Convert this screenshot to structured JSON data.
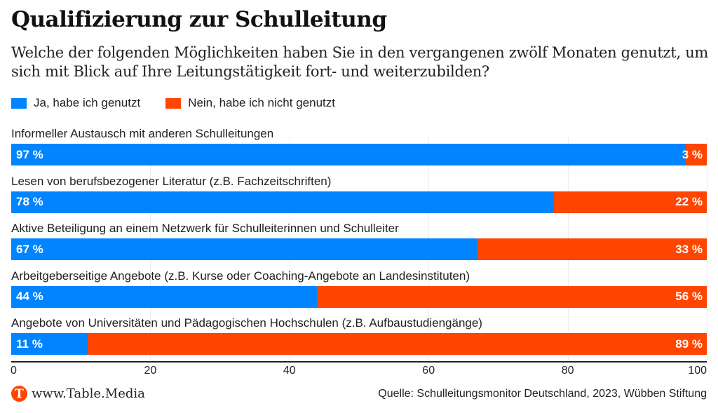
{
  "header": {
    "title": "Qualifizierung zur Schulleitung",
    "subtitle": "Welche der folgenden Möglichkeiten haben Sie in den vergangenen zwölf Monaten genutzt, um sich mit Blick auf Ihre Leitungstätigkeit fort- und weiterzubilden?"
  },
  "colors": {
    "yes": "#0084ff",
    "no": "#ff4500"
  },
  "chart_data": {
    "type": "bar",
    "orientation": "horizontal",
    "stacked": true,
    "title": "Qualifizierung zur Schulleitung",
    "subtitle": "Welche der folgenden Möglichkeiten haben Sie in den vergangenen zwölf Monaten genutzt, um sich mit Blick auf Ihre Leitungstätigkeit fort- und weiterzubilden?",
    "categories": [
      "Informeller Austausch mit anderen Schulleitungen",
      "Lesen von berufsbezogener Literatur (z.B. Fachzeitschriften)",
      "Aktive Beteiligung an einem Netzwerk für Schulleiterinnen und Schulleiter",
      "Arbeitgeberseitige Angebote (z.B. Kurse oder Coaching-Angebote an Landesinstituten)",
      "Angebote von Universitäten und Pädagogischen Hochschulen (z.B. Aufbaustudiengänge)"
    ],
    "series": [
      {
        "name": "Ja, habe ich genutzt",
        "values": [
          97,
          78,
          67,
          44,
          11
        ],
        "labels": [
          "97 %",
          "78 %",
          "67 %",
          "44 %",
          "11 %"
        ]
      },
      {
        "name": "Nein, habe ich nicht genutzt",
        "values": [
          3,
          22,
          33,
          56,
          89
        ],
        "labels": [
          "3 %",
          "22 %",
          "33 %",
          "56 %",
          "89 %"
        ]
      }
    ],
    "xlim": [
      0,
      100
    ],
    "xticks": [
      "0",
      "20",
      "40",
      "60",
      "80",
      "100"
    ],
    "xlabel": "",
    "ylabel": "",
    "grid": true,
    "legend_position": "top-left"
  },
  "footer": {
    "logo_letter": "T",
    "brand": "www.Table.Media",
    "source": "Quelle: Schulleitungsmonitor Deutschland, 2023, Wübben Stiftung"
  }
}
